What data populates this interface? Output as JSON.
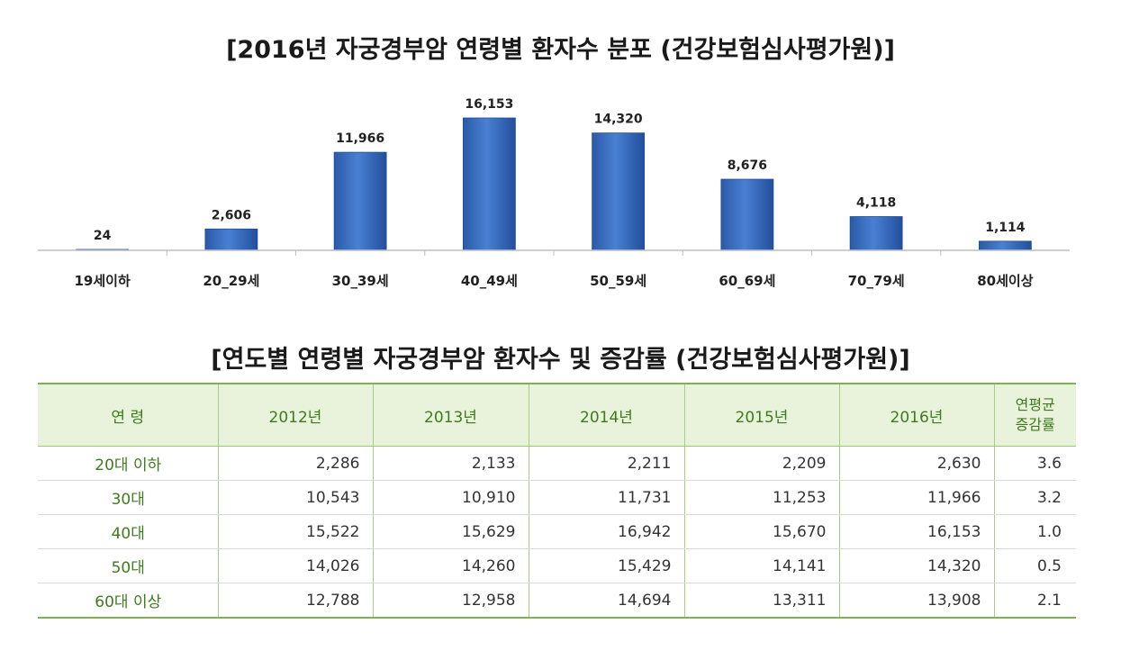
{
  "chart_data": {
    "type": "bar",
    "title": "[2016년 자궁경부암 연령별 환자수 분포 (건강보험심사평가원)]",
    "categories": [
      "19세이하",
      "20_29세",
      "30_39세",
      "40_49세",
      "50_59세",
      "60_69세",
      "70_79세",
      "80세이상"
    ],
    "values": [
      24,
      2606,
      11966,
      16153,
      14320,
      8676,
      4118,
      1114
    ],
    "value_labels": [
      "24",
      "2,606",
      "11,966",
      "16,153",
      "14,320",
      "8,676",
      "4,118",
      "1,114"
    ],
    "xlabel": "",
    "ylabel": "",
    "ylim": [
      0,
      16153
    ],
    "grid": false,
    "colors": {
      "bar": "#3c70c4",
      "bar_dark": "#1f4d95",
      "axis": "#bfbfbf"
    }
  },
  "table": {
    "title": "[연도별 연령별 자궁경부암 환자수 및 증감률 (건강보험심사평가원)]",
    "headers": [
      "연 령",
      "2012년",
      "2013년",
      "2014년",
      "2015년",
      "2016년"
    ],
    "rate_header": [
      "연평균",
      "증감률"
    ],
    "rows": [
      [
        "20대 이하",
        "2,286",
        "2,133",
        "2,211",
        "2,209",
        "2,630",
        "3.6"
      ],
      [
        "30대",
        "10,543",
        "10,910",
        "11,731",
        "11,253",
        "11,966",
        "3.2"
      ],
      [
        "40대",
        "15,522",
        "15,629",
        "16,942",
        "15,670",
        "16,153",
        "1.0"
      ],
      [
        "50대",
        "14,026",
        "14,260",
        "15,429",
        "14,141",
        "14,320",
        "0.5"
      ],
      [
        "60대 이상",
        "12,788",
        "12,958",
        "14,694",
        "13,311",
        "13,908",
        "2.1"
      ]
    ],
    "colors": {
      "header_bg": "#e9f3dc",
      "header_text": "#3f7b1d",
      "border": "#7fb054"
    }
  }
}
